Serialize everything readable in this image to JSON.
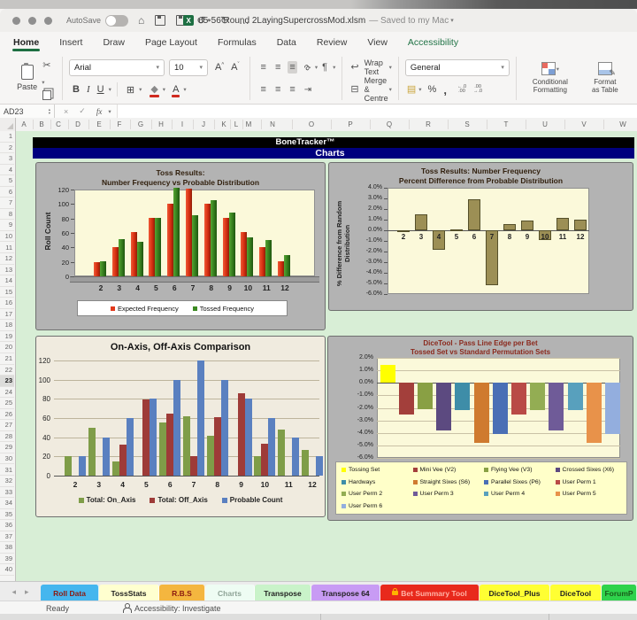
{
  "window": {
    "autosave_label": "AutoSave",
    "filename": "65-56 Round 2LayingSupercrossMod.xlsm",
    "saved_status": "— Saved to my Mac"
  },
  "icons": {
    "home": "⌂",
    "undo": "↺",
    "redo": "↻",
    "more": "…",
    "cut": "✂",
    "copy_pen": "✎",
    "painter": "✎",
    "bold": "B",
    "italic": "I",
    "underline": "U",
    "borders": "⊞",
    "fill": "◆",
    "fontcolor": "A",
    "align": "≡",
    "orient": "a",
    "pilcrow": "¶",
    "wrap": "↩",
    "merge": "⊟",
    "money": "▤",
    "percent": "%",
    "comma": ",",
    "inc0": "←.0",
    "inc1": ".00",
    "dec0": ".00",
    "dec1": "→.0",
    "cancel": "×",
    "confirm": "✓",
    "fx": "fx",
    "chevron": "▾",
    "left_arrow": "◂",
    "right_arrow": "▸",
    "up": "▴",
    "down": "▾"
  },
  "ribbon": {
    "tabs": [
      {
        "label": "Home",
        "active": true,
        "green": false
      },
      {
        "label": "Insert",
        "active": false,
        "green": false
      },
      {
        "label": "Draw",
        "active": false,
        "green": false
      },
      {
        "label": "Page Layout",
        "active": false,
        "green": false
      },
      {
        "label": "Formulas",
        "active": false,
        "green": false
      },
      {
        "label": "Data",
        "active": false,
        "green": false
      },
      {
        "label": "Review",
        "active": false,
        "green": false
      },
      {
        "label": "View",
        "active": false,
        "green": false
      },
      {
        "label": "Accessibility",
        "active": false,
        "green": true
      }
    ]
  },
  "toolbar": {
    "paste_label": "Paste",
    "font_name": "Arial",
    "font_size": "10",
    "wrap_label": "Wrap Text",
    "merge_label": "Merge & Centre",
    "number_format": "General",
    "conditional": [
      "Conditional",
      "Formatting"
    ],
    "format_table": [
      "Format",
      "as Table"
    ]
  },
  "formula_bar": {
    "name_box": "AD23"
  },
  "grid": {
    "banner1": "BoneTracker™",
    "banner2": "Charts",
    "columns": [
      "A",
      "B",
      "C",
      "D",
      "E",
      "F",
      "G",
      "H",
      "I",
      "J",
      "K",
      "L",
      "M",
      "N",
      "O",
      "P",
      "Q",
      "R",
      "S",
      "T",
      "U",
      "V",
      "W"
    ],
    "row_count": 40,
    "active_row": 23
  },
  "chart_data": [
    {
      "type": "bar",
      "style": "3d-clustered",
      "title_lines": [
        "Toss Results:",
        "Number Frequency vs Probable Distribution"
      ],
      "ylabel": "Roll Count",
      "categories": [
        "2",
        "3",
        "4",
        "5",
        "6",
        "7",
        "8",
        "9",
        "10",
        "11",
        "12"
      ],
      "series": [
        {
          "name": "Expected Frequency",
          "color": "#e2391b",
          "values": [
            20,
            41,
            61,
            81,
            101,
            121,
            101,
            81,
            61,
            41,
            21
          ]
        },
        {
          "name": "Tossed Frequency",
          "color": "#3c8a22",
          "values": [
            21,
            52,
            48,
            81,
            122,
            84,
            105,
            88,
            54,
            50,
            29
          ]
        }
      ],
      "ylim": [
        0,
        120
      ],
      "yticks": [
        "120",
        "100",
        "80",
        "60",
        "40",
        "20",
        "0"
      ],
      "grid": false,
      "legend_position": "bottom-box",
      "plot_bg": "#fbf9da"
    },
    {
      "type": "bar",
      "style": "2d-single",
      "title_lines": [
        "Toss Results: Number Frequency",
        "Percent Difference from Probable Distribution"
      ],
      "ylabel_lines": [
        "% Difference from Random",
        "Distribution"
      ],
      "categories": [
        "2",
        "3",
        "4",
        "5",
        "6",
        "7",
        "8",
        "9",
        "10",
        "11",
        "12"
      ],
      "series": [
        {
          "name": "% Difference",
          "color": "#9c8f55",
          "border": "#55502a",
          "values": [
            -0.05,
            1.5,
            -1.8,
            0.05,
            2.9,
            -5.2,
            0.6,
            0.95,
            -0.9,
            1.2,
            1.0
          ]
        }
      ],
      "ylim": [
        -6,
        4
      ],
      "yticks": [
        "4.0%",
        "3.0%",
        "2.0%",
        "1.0%",
        "0.0%",
        "-1.0%",
        "-2.0%",
        "-3.0%",
        "-4.0%",
        "-5.0%",
        "-6.0%"
      ],
      "grid": false,
      "legend_position": "none",
      "plot_bg": "#fbf9da"
    },
    {
      "type": "bar",
      "style": "2d-clustered",
      "title_lines": [
        "On-Axis, Off-Axis Comparison"
      ],
      "categories": [
        "2",
        "3",
        "4",
        "5",
        "6",
        "7",
        "8",
        "9",
        "10",
        "11",
        "12"
      ],
      "series": [
        {
          "name": "Total: On_Axis",
          "color": "#7f9d48",
          "values": [
            20,
            50,
            15,
            0,
            55,
            62,
            42,
            0,
            20,
            48,
            27
          ]
        },
        {
          "name": "Total: Off_Axis",
          "color": "#9e3b38",
          "values": [
            0,
            0,
            32,
            79,
            65,
            20,
            61,
            86,
            33,
            0,
            0
          ]
        },
        {
          "name": "Probable Count",
          "color": "#5a80c0",
          "values": [
            20,
            40,
            60,
            80,
            100,
            120,
            100,
            80,
            60,
            40,
            20
          ]
        }
      ],
      "ylim": [
        0,
        120
      ],
      "yticks": [
        "120",
        "100",
        "80",
        "60",
        "40",
        "20",
        "0"
      ],
      "grid": true,
      "legend_position": "inline-bottom",
      "plot_bg": "#f0ebdf"
    },
    {
      "type": "bar",
      "style": "2d-multicolor",
      "title_lines": [
        "DiceTool - Pass Line Edge per Bet",
        "Tossed Set vs Standard Permutation Sets"
      ],
      "series": [
        {
          "name": "Tossing Set",
          "color": "#ffff00",
          "value": 1.4
        },
        {
          "name": "Mini Vee (V2)",
          "color": "#a33f3b",
          "value": -2.5
        },
        {
          "name": "Flying Vee (V3)",
          "color": "#89a044",
          "value": -2.1
        },
        {
          "name": "Crossed Sixes (X6)",
          "color": "#5c4a80",
          "value": -3.8
        },
        {
          "name": "Hardways",
          "color": "#3e8da8",
          "value": -2.2
        },
        {
          "name": "Straight Sixes (S6)",
          "color": "#cf7a2f",
          "value": -4.8
        },
        {
          "name": "Parallel Sixes (P6)",
          "color": "#4a6fb5",
          "value": -4.1
        },
        {
          "name": "User Perm 1",
          "color": "#b94a46",
          "value": -2.5
        },
        {
          "name": "User Perm 2",
          "color": "#93ad53",
          "value": -2.2
        },
        {
          "name": "User Perm 3",
          "color": "#6f5b98",
          "value": -3.8
        },
        {
          "name": "User Perm 4",
          "color": "#58a0bd",
          "value": -2.2
        },
        {
          "name": "User Perm 5",
          "color": "#e8924a",
          "value": -4.8
        },
        {
          "name": "User Perm 6",
          "color": "#93aede",
          "value": -4.1
        }
      ],
      "ylim": [
        -6,
        2
      ],
      "yticks": [
        "2.0%",
        "1.0%",
        "0.0%",
        "-1.0%",
        "-2.0%",
        "-3.0%",
        "-4.0%",
        "-5.0%",
        "-6.0%"
      ],
      "grid": true,
      "legend_position": "grid-box",
      "plot_bg": "#fdfbd8"
    }
  ],
  "sheet_tabs": [
    {
      "label": "Roll Data",
      "bg": "#45b6ee",
      "fg": "#8b1a10",
      "lock": false,
      "active": false
    },
    {
      "label": "TossStats",
      "bg": "#ffffcf",
      "fg": "#222222",
      "lock": false,
      "active": false
    },
    {
      "label": "R.B.S",
      "bg": "#f4b63f",
      "fg": "#8b1a10",
      "lock": false,
      "active": false
    },
    {
      "label": "Charts",
      "bg": "#eefcf3",
      "fg": "#8fa497",
      "lock": false,
      "active": true
    },
    {
      "label": "Transpose",
      "bg": "#c9f3c9",
      "fg": "#222222",
      "lock": false,
      "active": false
    },
    {
      "label": "Transpose 64",
      "bg": "#c89bf4",
      "fg": "#222222",
      "lock": false,
      "active": false
    },
    {
      "label": "Bet Summary Tool",
      "bg": "#e8291c",
      "fg": "#ffb3a6",
      "lock": true,
      "active": false
    },
    {
      "label": "DiceTool_Plus",
      "bg": "#ffff33",
      "fg": "#222222",
      "lock": false,
      "active": false
    },
    {
      "label": "DiceTool",
      "bg": "#ffff33",
      "fg": "#222222",
      "lock": false,
      "active": false
    },
    {
      "label": "ForumP",
      "bg": "#2fd24c",
      "fg": "#1a5c1a",
      "lock": false,
      "active": false
    }
  ],
  "status_bar": {
    "ready": "Ready",
    "accessibility": "Accessibility: Investigate"
  }
}
